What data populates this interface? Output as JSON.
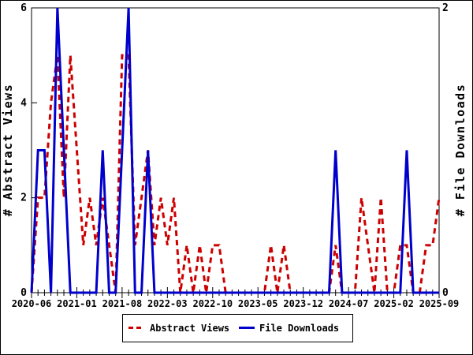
{
  "chart_data": {
    "type": "line",
    "title": "",
    "x": [
      "2020-06",
      "2020-07",
      "2020-08",
      "2020-09",
      "2020-10",
      "2020-11",
      "2020-12",
      "2021-01",
      "2021-02",
      "2021-03",
      "2021-04",
      "2021-05",
      "2021-06",
      "2021-07",
      "2021-08",
      "2021-09",
      "2021-10",
      "2021-11",
      "2021-12",
      "2022-01",
      "2022-02",
      "2022-03",
      "2022-04",
      "2022-05",
      "2022-06",
      "2022-07",
      "2022-08",
      "2022-09",
      "2022-10",
      "2022-11",
      "2022-12",
      "2023-01",
      "2023-02",
      "2023-03",
      "2023-04",
      "2023-05",
      "2023-06",
      "2023-07",
      "2023-08",
      "2023-09",
      "2023-10",
      "2023-11",
      "2023-12",
      "2024-01",
      "2024-02",
      "2024-03",
      "2024-04",
      "2024-05",
      "2024-06",
      "2024-07",
      "2024-08",
      "2024-09",
      "2024-10",
      "2024-11",
      "2024-12",
      "2025-01",
      "2025-02",
      "2025-03",
      "2025-04",
      "2025-05",
      "2025-06",
      "2025-07",
      "2025-08",
      "2025-09"
    ],
    "series": [
      {
        "name": "Abstract Views",
        "axis": "left",
        "color": "#cc0000",
        "dashed": true,
        "values": [
          0,
          2,
          2,
          4,
          5,
          2,
          5,
          3,
          1,
          2,
          1,
          2,
          1,
          0,
          5,
          5,
          1,
          2,
          3,
          1,
          2,
          1,
          2,
          0,
          1,
          0,
          1,
          0,
          1,
          1,
          0,
          0,
          0,
          0,
          0,
          0,
          0,
          1,
          0,
          1,
          0,
          0,
          0,
          0,
          0,
          0,
          0,
          1,
          0,
          0,
          0,
          2,
          1,
          0,
          2,
          0,
          0,
          1,
          1,
          0,
          0,
          1,
          1,
          2
        ]
      },
      {
        "name": "File Downloads",
        "axis": "right",
        "color": "#0000cc",
        "dashed": false,
        "values": [
          0,
          1,
          1,
          0,
          2,
          1,
          0,
          0,
          0,
          0,
          0,
          1,
          0,
          0,
          1,
          2,
          0,
          0,
          1,
          0,
          0,
          0,
          0,
          0,
          0,
          0,
          0,
          0,
          0,
          0,
          0,
          0,
          0,
          0,
          0,
          0,
          0,
          0,
          0,
          0,
          0,
          0,
          0,
          0,
          0,
          0,
          0,
          1,
          0,
          0,
          0,
          0,
          0,
          0,
          0,
          0,
          0,
          0,
          1,
          0,
          0,
          0,
          0,
          0
        ]
      }
    ],
    "left_axis": {
      "label": "# Abstract Views",
      "min": 0,
      "max": 6,
      "ticks": [
        0,
        2,
        4,
        6
      ]
    },
    "right_axis": {
      "label": "# File Downloads",
      "min": 0,
      "max": 2,
      "ticks": [
        0,
        2
      ]
    },
    "x_axis": {
      "major_tick_every": 7,
      "major_tick_labels": [
        "2020-06",
        "2021-01",
        "2021-08",
        "2022-03",
        "2022-10",
        "2023-05",
        "2023-12",
        "2024-07",
        "2025-02",
        "2025-09"
      ]
    },
    "legend": {
      "position": "bottom",
      "entries": [
        "Abstract Views",
        "File Downloads"
      ]
    },
    "grid": false,
    "colors": {
      "background": "#ffffff",
      "frame": "#000000",
      "abstract_views": "#cc0000",
      "file_downloads": "#0000cc"
    }
  }
}
